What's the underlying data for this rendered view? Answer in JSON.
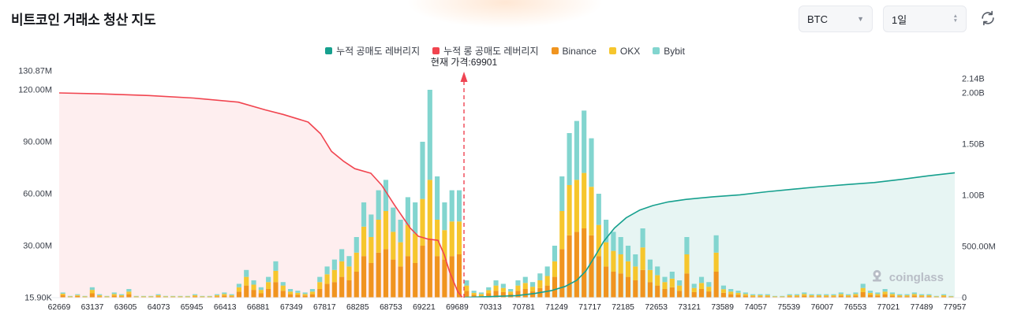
{
  "header": {
    "title": "비트코인 거래소 청산 지도",
    "symbol_select": {
      "value": "BTC"
    },
    "interval_select": {
      "value": "1일"
    }
  },
  "legend": [
    {
      "label": "누적 공매도 레버리지",
      "color": "#16a08e"
    },
    {
      "label": "누적 롱 공매도 레버리지",
      "color": "#f1444f"
    },
    {
      "label": "Binance",
      "color": "#f0941f"
    },
    {
      "label": "OKX",
      "color": "#f6c62d"
    },
    {
      "label": "Bybit",
      "color": "#82d5cf"
    }
  ],
  "annotation": {
    "current_price_label": "현재 가격:69901",
    "current_price": 69901,
    "current_price_frac": 0.452
  },
  "watermark": {
    "text": "coinglass"
  },
  "chart_data": {
    "type": "bar+line",
    "title": "비트코인 거래소 청산 지도",
    "x_tick_labels": [
      "62669",
      "63137",
      "63605",
      "64073",
      "65945",
      "66413",
      "66881",
      "67349",
      "67817",
      "68285",
      "68753",
      "69221",
      "69689",
      "70313",
      "70781",
      "71249",
      "71717",
      "72185",
      "72653",
      "73121",
      "73589",
      "74057",
      "75539",
      "76007",
      "76553",
      "77021",
      "77489",
      "77957"
    ],
    "left_axis": {
      "unit": "M",
      "labels": [
        "130.87M",
        "120.00M",
        "90.00M",
        "60.00M",
        "30.00M",
        "15.90K"
      ],
      "values": [
        130.87,
        120,
        90,
        60,
        30,
        0.0159
      ]
    },
    "right_axis": {
      "unit": "B",
      "labels": [
        "2.14B",
        "2.00B",
        "1.50B",
        "1.00B",
        "500.00M",
        "0"
      ],
      "values": [
        2.14,
        2.0,
        1.5,
        1.0,
        0.5,
        0
      ]
    },
    "bars": {
      "series": [
        "Binance",
        "OKX",
        "Bybit"
      ],
      "colors": [
        "#f0941f",
        "#f6c62d",
        "#82d5cf"
      ],
      "unit": "M",
      "values": [
        [
          1.5,
          0.8,
          0.7
        ],
        [
          0.4,
          0.3,
          0.3
        ],
        [
          1,
          0.5,
          0.5
        ],
        [
          0.4,
          0.3,
          0.3
        ],
        [
          2.5,
          2,
          1.5
        ],
        [
          0.8,
          0.6,
          0.6
        ],
        [
          0.4,
          0.3,
          0.3
        ],
        [
          1.2,
          0.9,
          0.9
        ],
        [
          0.8,
          0.6,
          0.6
        ],
        [
          2,
          1.5,
          1.5
        ],
        [
          0.4,
          0.3,
          0.3
        ],
        [
          0.4,
          0.3,
          0.3
        ],
        [
          0.4,
          0.3,
          0.3
        ],
        [
          0.8,
          0.6,
          0.6
        ],
        [
          0.4,
          0.3,
          0.3
        ],
        [
          0.4,
          0.3,
          0.3
        ],
        [
          0.4,
          0.3,
          0.3
        ],
        [
          0.4,
          0.3,
          0.3
        ],
        [
          0.8,
          0.6,
          0.6
        ],
        [
          0.4,
          0.3,
          0.3
        ],
        [
          0.4,
          0.3,
          0.3
        ],
        [
          0.8,
          0.6,
          0.6
        ],
        [
          1.2,
          0.9,
          0.9
        ],
        [
          0.8,
          0.6,
          0.6
        ],
        [
          3.5,
          2.5,
          2
        ],
        [
          7,
          5,
          4
        ],
        [
          4.5,
          3,
          2.5
        ],
        [
          2.5,
          2,
          1.5
        ],
        [
          5,
          4,
          3
        ],
        [
          9,
          6.5,
          5.5
        ],
        [
          4,
          3,
          2
        ],
        [
          2,
          1.5,
          1.5
        ],
        [
          1.6,
          1.2,
          1.2
        ],
        [
          1.2,
          0.9,
          0.9
        ],
        [
          2,
          1.5,
          1.5
        ],
        [
          5,
          4,
          3
        ],
        [
          8,
          5.5,
          4.5
        ],
        [
          9,
          7,
          6
        ],
        [
          12,
          9,
          7
        ],
        [
          10,
          8,
          6
        ],
        [
          15,
          11,
          9
        ],
        [
          24,
          17,
          14
        ],
        [
          20,
          15,
          13
        ],
        [
          26,
          19,
          17
        ],
        [
          28,
          22,
          18
        ],
        [
          22,
          16,
          14
        ],
        [
          18,
          14,
          13
        ],
        [
          24,
          18,
          16
        ],
        [
          20,
          17,
          18
        ],
        [
          30,
          27,
          33
        ],
        [
          34,
          34,
          52
        ],
        [
          24,
          21,
          25
        ],
        [
          22,
          17,
          16
        ],
        [
          24,
          20,
          18
        ],
        [
          25,
          19,
          18
        ],
        [
          4,
          3,
          3
        ],
        [
          1.6,
          1.2,
          1.2
        ],
        [
          1.2,
          0.9,
          0.9
        ],
        [
          2.5,
          1.8,
          1.7
        ],
        [
          4,
          3,
          3
        ],
        [
          3.2,
          2.4,
          2.4
        ],
        [
          2,
          1.5,
          1.5
        ],
        [
          4,
          3,
          3
        ],
        [
          5,
          3.5,
          3.5
        ],
        [
          3.6,
          2.7,
          2.7
        ],
        [
          5.5,
          4.5,
          4
        ],
        [
          7,
          5.5,
          5.5
        ],
        [
          12,
          9,
          9
        ],
        [
          28,
          22,
          20
        ],
        [
          36,
          29,
          30
        ],
        [
          38,
          30,
          34
        ],
        [
          40,
          32,
          36
        ],
        [
          36,
          28,
          28
        ],
        [
          24,
          18,
          18
        ],
        [
          18,
          14,
          13
        ],
        [
          15,
          12,
          11
        ],
        [
          14,
          11,
          10
        ],
        [
          12,
          9,
          9
        ],
        [
          10,
          8,
          7
        ],
        [
          16,
          13,
          11
        ],
        [
          9,
          7,
          6
        ],
        [
          7,
          6,
          5
        ],
        [
          5,
          4,
          3
        ],
        [
          6,
          5,
          4
        ],
        [
          4,
          3,
          3
        ],
        [
          14,
          11,
          10
        ],
        [
          3.2,
          2.4,
          2.4
        ],
        [
          5,
          3.5,
          3.5
        ],
        [
          3.6,
          2.7,
          2.7
        ],
        [
          15,
          11,
          10
        ],
        [
          2.8,
          2.1,
          2.1
        ],
        [
          2,
          1.5,
          1.5
        ],
        [
          1.6,
          1.2,
          1.2
        ],
        [
          1.2,
          0.9,
          0.9
        ],
        [
          0.8,
          0.6,
          0.6
        ],
        [
          0.8,
          0.6,
          0.6
        ],
        [
          0.8,
          0.6,
          0.6
        ],
        [
          0.4,
          0.3,
          0.3
        ],
        [
          0.4,
          0.3,
          0.3
        ],
        [
          0.8,
          0.6,
          0.6
        ],
        [
          0.8,
          0.6,
          0.6
        ],
        [
          1.2,
          0.9,
          0.9
        ],
        [
          0.8,
          0.6,
          0.6
        ],
        [
          0.8,
          0.6,
          0.6
        ],
        [
          0.8,
          0.6,
          0.6
        ],
        [
          0.8,
          0.6,
          0.6
        ],
        [
          1.2,
          0.9,
          0.9
        ],
        [
          0.8,
          0.6,
          0.6
        ],
        [
          1.2,
          0.9,
          0.9
        ],
        [
          3.2,
          2.4,
          2.4
        ],
        [
          1.6,
          1.2,
          1.2
        ],
        [
          1.2,
          0.9,
          0.9
        ],
        [
          2,
          1.5,
          1.5
        ],
        [
          1.2,
          0.9,
          0.9
        ],
        [
          0.8,
          0.6,
          0.6
        ],
        [
          0.8,
          0.6,
          0.6
        ],
        [
          1.2,
          0.9,
          0.9
        ],
        [
          0.8,
          0.6,
          0.6
        ],
        [
          0.8,
          0.6,
          0.6
        ],
        [
          0.4,
          0.3,
          0.3
        ],
        [
          0.8,
          0.6,
          0.6
        ],
        [
          0.4,
          0.3,
          0.3
        ]
      ]
    },
    "lines": [
      {
        "name": "누적 롱 공매도 레버리지",
        "color": "#f1444f",
        "fill": "rgba(241,68,79,0.09)",
        "axis": "right",
        "unit": "B",
        "points": [
          [
            0,
            2.0
          ],
          [
            0.05,
            1.99
          ],
          [
            0.1,
            1.975
          ],
          [
            0.15,
            1.95
          ],
          [
            0.2,
            1.91
          ],
          [
            0.23,
            1.835
          ],
          [
            0.25,
            1.79
          ],
          [
            0.278,
            1.715
          ],
          [
            0.292,
            1.6
          ],
          [
            0.304,
            1.43
          ],
          [
            0.318,
            1.33
          ],
          [
            0.33,
            1.26
          ],
          [
            0.348,
            1.215
          ],
          [
            0.36,
            1.1
          ],
          [
            0.374,
            0.91
          ],
          [
            0.392,
            0.68
          ],
          [
            0.401,
            0.6
          ],
          [
            0.412,
            0.572
          ],
          [
            0.423,
            0.56
          ],
          [
            0.43,
            0.42
          ],
          [
            0.436,
            0.25
          ],
          [
            0.445,
            0.06
          ],
          [
            0.45,
            0.005
          ]
        ]
      },
      {
        "name": "누적 공매도 레버리지",
        "color": "#16a08e",
        "fill": "rgba(22,160,142,0.10)",
        "axis": "right",
        "unit": "B",
        "points": [
          [
            0.452,
            0.002
          ],
          [
            0.48,
            0.01
          ],
          [
            0.51,
            0.02
          ],
          [
            0.53,
            0.04
          ],
          [
            0.55,
            0.07
          ],
          [
            0.565,
            0.11
          ],
          [
            0.578,
            0.17
          ],
          [
            0.588,
            0.26
          ],
          [
            0.598,
            0.4
          ],
          [
            0.608,
            0.55
          ],
          [
            0.62,
            0.68
          ],
          [
            0.633,
            0.78
          ],
          [
            0.648,
            0.855
          ],
          [
            0.663,
            0.9
          ],
          [
            0.68,
            0.935
          ],
          [
            0.7,
            0.96
          ],
          [
            0.73,
            0.985
          ],
          [
            0.76,
            1.005
          ],
          [
            0.79,
            1.035
          ],
          [
            0.82,
            1.06
          ],
          [
            0.85,
            1.085
          ],
          [
            0.88,
            1.105
          ],
          [
            0.91,
            1.125
          ],
          [
            0.94,
            1.155
          ],
          [
            0.97,
            1.19
          ],
          [
            1,
            1.22
          ]
        ]
      }
    ],
    "current_price_line": {
      "value": 69901,
      "color": "#ef4452",
      "style": "dashed"
    }
  }
}
